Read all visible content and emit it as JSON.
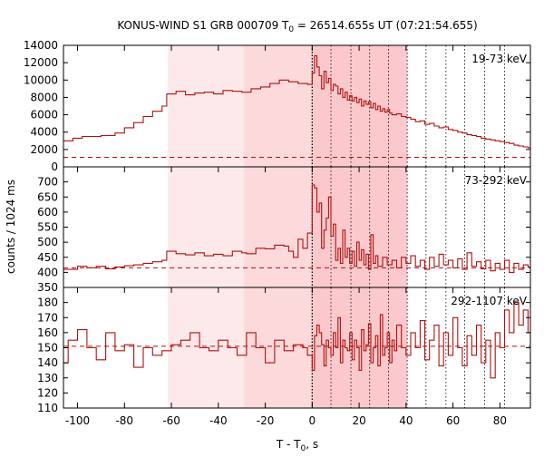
{
  "title": {
    "prefix": "KONUS-WIND S1 GRB 000709 T",
    "sub": "0",
    "suffix": " = 26514.655s UT (07:21:54.655)"
  },
  "colors": {
    "trace": "#b01010",
    "band_light": "#fde9ea",
    "band_mid": "#fcdadc",
    "band_dark": "#fbc9cc",
    "frame": "#000000"
  },
  "chart_data": [
    {
      "type": "line",
      "panel": "top",
      "label": "19-73 keV",
      "xlim": [
        -106,
        93
      ],
      "ylim": [
        0,
        14000
      ],
      "yticks": [
        0,
        2000,
        4000,
        6000,
        8000,
        10000,
        12000,
        14000
      ],
      "yticklabels": [
        "0",
        "2000",
        "4000",
        "6000",
        "8000",
        "10000",
        "12000",
        "14000"
      ],
      "background": 1100,
      "steps": [
        [
          -106,
          3000
        ],
        [
          -102,
          3300
        ],
        [
          -98,
          3500
        ],
        [
          -90,
          3600
        ],
        [
          -84,
          3900
        ],
        [
          -80,
          4500
        ],
        [
          -76,
          5100
        ],
        [
          -72,
          5800
        ],
        [
          -68,
          6400
        ],
        [
          -64,
          7000
        ],
        [
          -62,
          8400
        ],
        [
          -58,
          8700
        ],
        [
          -54,
          8300
        ],
        [
          -50,
          8500
        ],
        [
          -46,
          8600
        ],
        [
          -42,
          8400
        ],
        [
          -38,
          8800
        ],
        [
          -34,
          8700
        ],
        [
          -30,
          8600
        ],
        [
          -26,
          9000
        ],
        [
          -22,
          9200
        ],
        [
          -18,
          9600
        ],
        [
          -14,
          10000
        ],
        [
          -10,
          9800
        ],
        [
          -6,
          9600
        ],
        [
          -2,
          9500
        ],
        [
          0,
          10800
        ],
        [
          1,
          12800
        ],
        [
          2,
          11500
        ],
        [
          3,
          10500
        ],
        [
          4,
          9000
        ],
        [
          5,
          11000
        ],
        [
          6,
          9700
        ],
        [
          7,
          10200
        ],
        [
          8,
          8800
        ],
        [
          9,
          9500
        ],
        [
          10,
          9300
        ],
        [
          11,
          8400
        ],
        [
          12,
          9000
        ],
        [
          13,
          8000
        ],
        [
          14,
          8600
        ],
        [
          15,
          7700
        ],
        [
          16,
          8200
        ],
        [
          17,
          7600
        ],
        [
          18,
          8000
        ],
        [
          19,
          7400
        ],
        [
          20,
          7800
        ],
        [
          21,
          7000
        ],
        [
          22,
          7600
        ],
        [
          23,
          7200
        ],
        [
          24,
          7500
        ],
        [
          25,
          6800
        ],
        [
          26,
          7300
        ],
        [
          27,
          6600
        ],
        [
          28,
          7000
        ],
        [
          29,
          6400
        ],
        [
          30,
          6700
        ],
        [
          31,
          6300
        ],
        [
          32,
          6600
        ],
        [
          33,
          6200
        ],
        [
          34,
          6000
        ],
        [
          36,
          6100
        ],
        [
          38,
          5800
        ],
        [
          40,
          5700
        ],
        [
          42,
          5500
        ],
        [
          44,
          5200
        ],
        [
          46,
          5300
        ],
        [
          48,
          4900
        ],
        [
          50,
          5000
        ],
        [
          52,
          4700
        ],
        [
          54,
          4500
        ],
        [
          56,
          4600
        ],
        [
          58,
          4300
        ],
        [
          60,
          4200
        ],
        [
          62,
          4000
        ],
        [
          64,
          3900
        ],
        [
          66,
          3700
        ],
        [
          68,
          3600
        ],
        [
          70,
          3500
        ],
        [
          72,
          3300
        ],
        [
          74,
          3200
        ],
        [
          76,
          3100
        ],
        [
          78,
          3000
        ],
        [
          80,
          2900
        ],
        [
          82,
          2800
        ],
        [
          84,
          2700
        ],
        [
          86,
          2500
        ],
        [
          88,
          2400
        ],
        [
          90,
          2300
        ],
        [
          92,
          2200
        ],
        [
          93,
          2200
        ]
      ]
    },
    {
      "type": "line",
      "panel": "middle",
      "label": "73-292 keV",
      "xlim": [
        -106,
        93
      ],
      "ylim": [
        350,
        750
      ],
      "yticks": [
        350,
        400,
        450,
        500,
        550,
        600,
        650,
        700
      ],
      "yticklabels": [
        "350",
        "400",
        "450",
        "500",
        "550",
        "600",
        "650",
        "700"
      ],
      "background": 415,
      "steps": [
        [
          -106,
          410
        ],
        [
          -100,
          420
        ],
        [
          -96,
          415
        ],
        [
          -92,
          420
        ],
        [
          -88,
          412
        ],
        [
          -84,
          418
        ],
        [
          -80,
          422
        ],
        [
          -76,
          425
        ],
        [
          -72,
          430
        ],
        [
          -68,
          435
        ],
        [
          -64,
          440
        ],
        [
          -62,
          470
        ],
        [
          -58,
          462
        ],
        [
          -54,
          458
        ],
        [
          -50,
          465
        ],
        [
          -46,
          455
        ],
        [
          -42,
          460
        ],
        [
          -38,
          455
        ],
        [
          -34,
          470
        ],
        [
          -30,
          465
        ],
        [
          -28,
          462
        ],
        [
          -24,
          480
        ],
        [
          -20,
          478
        ],
        [
          -16,
          490
        ],
        [
          -12,
          487
        ],
        [
          -10,
          470
        ],
        [
          -8,
          450
        ],
        [
          -6,
          510
        ],
        [
          -4,
          480
        ],
        [
          -2,
          530
        ],
        [
          0,
          690
        ],
        [
          1,
          680
        ],
        [
          2,
          600
        ],
        [
          3,
          630
        ],
        [
          4,
          480
        ],
        [
          5,
          540
        ],
        [
          6,
          580
        ],
        [
          7,
          650
        ],
        [
          8,
          520
        ],
        [
          9,
          560
        ],
        [
          10,
          440
        ],
        [
          11,
          480
        ],
        [
          12,
          430
        ],
        [
          13,
          540
        ],
        [
          14,
          450
        ],
        [
          15,
          480
        ],
        [
          16,
          430
        ],
        [
          17,
          470
        ],
        [
          18,
          420
        ],
        [
          19,
          500
        ],
        [
          20,
          440
        ],
        [
          21,
          475
        ],
        [
          22,
          425
        ],
        [
          23,
          460
        ],
        [
          24,
          410
        ],
        [
          25,
          525
        ],
        [
          26,
          430
        ],
        [
          27,
          455
        ],
        [
          28,
          420
        ],
        [
          30,
          450
        ],
        [
          32,
          425
        ],
        [
          34,
          440
        ],
        [
          36,
          415
        ],
        [
          38,
          450
        ],
        [
          40,
          430
        ],
        [
          42,
          455
        ],
        [
          44,
          420
        ],
        [
          46,
          440
        ],
        [
          48,
          410
        ],
        [
          50,
          450
        ],
        [
          52,
          420
        ],
        [
          54,
          460
        ],
        [
          56,
          425
        ],
        [
          58,
          440
        ],
        [
          60,
          415
        ],
        [
          62,
          445
        ],
        [
          64,
          410
        ],
        [
          66,
          465
        ],
        [
          68,
          420
        ],
        [
          70,
          435
        ],
        [
          72,
          412
        ],
        [
          74,
          440
        ],
        [
          76,
          405
        ],
        [
          78,
          430
        ],
        [
          80,
          410
        ],
        [
          82,
          440
        ],
        [
          84,
          400
        ],
        [
          86,
          430
        ],
        [
          88,
          410
        ],
        [
          90,
          425
        ],
        [
          92,
          418
        ],
        [
          93,
          418
        ]
      ]
    },
    {
      "type": "line",
      "panel": "bottom",
      "label": "292-1107 keV",
      "xlim": [
        -106,
        93
      ],
      "ylim": [
        110,
        190
      ],
      "yticks": [
        110,
        120,
        130,
        140,
        150,
        160,
        170,
        180
      ],
      "yticklabels": [
        "110",
        "120",
        "130",
        "140",
        "150",
        "160",
        "170",
        "180"
      ],
      "background": 151,
      "xticks": [
        -100,
        -80,
        -60,
        -40,
        -20,
        0,
        20,
        40,
        60,
        80
      ],
      "xticklabels": [
        "-100",
        "-80",
        "-60",
        "-40",
        "-20",
        "0",
        "20",
        "40",
        "60",
        "80"
      ],
      "xlabel_prefix": "T - T",
      "xlabel_sub": "0",
      "xlabel_suffix": ", s",
      "steps": [
        [
          -106,
          140
        ],
        [
          -104,
          155
        ],
        [
          -100,
          162
        ],
        [
          -96,
          150
        ],
        [
          -92,
          142
        ],
        [
          -88,
          160
        ],
        [
          -84,
          148
        ],
        [
          -80,
          152
        ],
        [
          -76,
          137
        ],
        [
          -72,
          150
        ],
        [
          -68,
          145
        ],
        [
          -64,
          148
        ],
        [
          -60,
          152
        ],
        [
          -56,
          155
        ],
        [
          -52,
          160
        ],
        [
          -48,
          150
        ],
        [
          -44,
          148
        ],
        [
          -40,
          155
        ],
        [
          -36,
          150
        ],
        [
          -32,
          145
        ],
        [
          -28,
          160
        ],
        [
          -24,
          150
        ],
        [
          -20,
          140
        ],
        [
          -16,
          155
        ],
        [
          -12,
          148
        ],
        [
          -8,
          152
        ],
        [
          -4,
          150
        ],
        [
          -2,
          145
        ],
        [
          0,
          135
        ],
        [
          1,
          158
        ],
        [
          2,
          165
        ],
        [
          3,
          160
        ],
        [
          4,
          152
        ],
        [
          5,
          138
        ],
        [
          6,
          155
        ],
        [
          7,
          150
        ],
        [
          8,
          145
        ],
        [
          9,
          160
        ],
        [
          10,
          150
        ],
        [
          11,
          170
        ],
        [
          12,
          140
        ],
        [
          13,
          155
        ],
        [
          14,
          150
        ],
        [
          15,
          148
        ],
        [
          16,
          160
        ],
        [
          17,
          142
        ],
        [
          18,
          155
        ],
        [
          19,
          150
        ],
        [
          20,
          135
        ],
        [
          21,
          162
        ],
        [
          22,
          148
        ],
        [
          23,
          152
        ],
        [
          24,
          166
        ],
        [
          25,
          140
        ],
        [
          26,
          150
        ],
        [
          27,
          158
        ],
        [
          28,
          138
        ],
        [
          29,
          172
        ],
        [
          30,
          145
        ],
        [
          31,
          150
        ],
        [
          32,
          160
        ],
        [
          33,
          140
        ],
        [
          34,
          155
        ],
        [
          35,
          148
        ],
        [
          36,
          165
        ],
        [
          38,
          150
        ],
        [
          40,
          145
        ],
        [
          42,
          160
        ],
        [
          44,
          150
        ],
        [
          46,
          168
        ],
        [
          48,
          142
        ],
        [
          50,
          155
        ],
        [
          52,
          165
        ],
        [
          54,
          138
        ],
        [
          56,
          160
        ],
        [
          58,
          145
        ],
        [
          60,
          170
        ],
        [
          62,
          150
        ],
        [
          64,
          138
        ],
        [
          66,
          158
        ],
        [
          68,
          145
        ],
        [
          70,
          165
        ],
        [
          72,
          140
        ],
        [
          74,
          155
        ],
        [
          76,
          130
        ],
        [
          78,
          160
        ],
        [
          80,
          150
        ],
        [
          82,
          175
        ],
        [
          84,
          160
        ],
        [
          86,
          180
        ],
        [
          88,
          165
        ],
        [
          90,
          175
        ],
        [
          92,
          160
        ],
        [
          93,
          160
        ]
      ]
    }
  ],
  "shared": {
    "ylabel": "counts / 1024 ms",
    "shading": [
      {
        "from": -61.5,
        "to": 40.5,
        "tone": "band_light"
      },
      {
        "from": -29,
        "to": 0,
        "tone": "band_mid"
      },
      {
        "from": 0,
        "to": 40.5,
        "tone": "band_dark"
      }
    ],
    "zero_line": 0,
    "interval_lines": [
      8,
      16.5,
      24.5,
      32.5,
      40.5,
      48.5,
      57,
      65,
      73.5,
      82
    ]
  }
}
